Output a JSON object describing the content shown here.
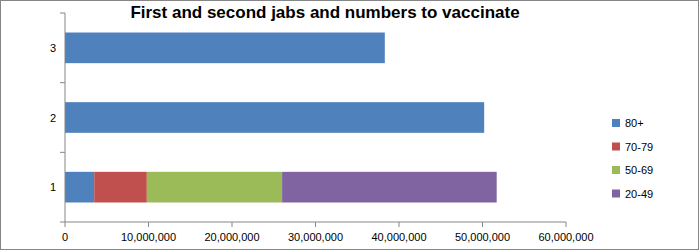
{
  "chart_data": {
    "type": "bar",
    "orientation": "horizontal",
    "stacked": true,
    "title": "First and second jabs and numbers to vaccinate",
    "categories": [
      "1",
      "2",
      "3"
    ],
    "series": [
      {
        "name": "80+",
        "color": "#4f81bd",
        "values": [
          3500000,
          50200000,
          38300000
        ]
      },
      {
        "name": "70-79",
        "color": "#c0504d",
        "values": [
          6300000,
          null,
          null
        ]
      },
      {
        "name": "50-69",
        "color": "#9bbb59",
        "values": [
          16200000,
          null,
          null
        ]
      },
      {
        "name": "20-49",
        "color": "#8064a2",
        "values": [
          25700000,
          null,
          null
        ]
      }
    ],
    "xlim": [
      0,
      60000000
    ],
    "xticks": [
      0,
      {
        "value": 10000000,
        "label": "10,000,000"
      },
      {
        "value": 20000000,
        "label": "20,000,000"
      },
      {
        "value": 30000000,
        "label": "30,000,000"
      },
      {
        "value": 40000000,
        "label": "40,000,000"
      },
      {
        "value": 50000000,
        "label": "50,000,000"
      },
      {
        "value": 60000000,
        "label": "60,000,000"
      }
    ],
    "grid": false,
    "legend": "right"
  }
}
